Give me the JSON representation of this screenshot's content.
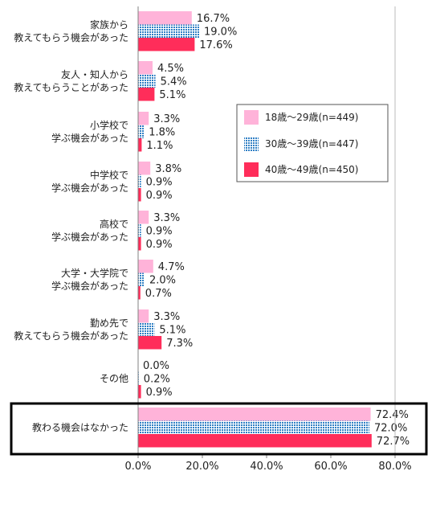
{
  "colors": {
    "series_18_29": "#ffb3d9",
    "series_30_39": "#2f7fc4",
    "series_40_49": "#ff2d5a",
    "axis": "#808080",
    "highlight_box": "#000000"
  },
  "chart_data": {
    "type": "bar",
    "orientation": "horizontal",
    "categories": [
      [
        "家族から",
        "教えてもらう機会があった"
      ],
      [
        "友人・知人から",
        "教えてもらうことがあった"
      ],
      [
        "小学校で",
        "学ぶ機会があった"
      ],
      [
        "中学校で",
        "学ぶ機会があった"
      ],
      [
        "高校で",
        "学ぶ機会があった"
      ],
      [
        "大学・大学院で",
        "学ぶ機会があった"
      ],
      [
        "勤め先で",
        "教えてもらう機会があった"
      ],
      [
        "その他"
      ],
      [
        "教わる機会はなかった"
      ]
    ],
    "series": [
      {
        "name": "18歳～29歳(n=449)",
        "pattern": "solid",
        "values": [
          16.7,
          4.5,
          3.3,
          3.8,
          3.3,
          4.7,
          3.3,
          0.0,
          72.4
        ]
      },
      {
        "name": "30歳～39歳(n=447)",
        "pattern": "grid",
        "values": [
          19.0,
          5.4,
          1.8,
          0.9,
          0.9,
          2.0,
          5.1,
          0.2,
          72.0
        ]
      },
      {
        "name": "40歳～49歳(n=450)",
        "pattern": "solid",
        "values": [
          17.6,
          5.1,
          1.1,
          0.9,
          0.9,
          0.7,
          7.3,
          0.9,
          72.7
        ]
      }
    ],
    "xlim": [
      0,
      80
    ],
    "xticks": [
      "0.0%",
      "20.0%",
      "40.0%",
      "60.0%",
      "80.0%"
    ],
    "value_format": "percent_1dp",
    "highlighted_category": "教わる機会はなかった",
    "legend_position": "right-middle",
    "grid": false
  }
}
